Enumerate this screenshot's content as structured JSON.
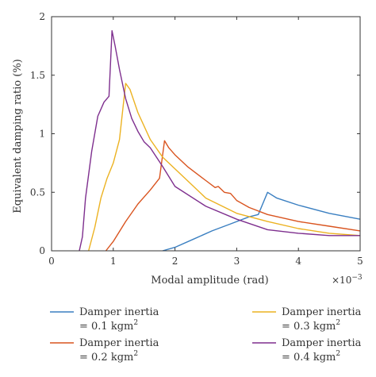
{
  "chart_data": {
    "type": "line",
    "title": "",
    "xlabel": "Modal amplitude (rad)",
    "x_multiplier": "×10",
    "x_multiplier_exponent": "−3",
    "ylabel": "Equivalent damping ratio (%)",
    "xlim": [
      0,
      5
    ],
    "ylim": [
      0,
      2
    ],
    "xticks": [
      0,
      1,
      2,
      3,
      4,
      5
    ],
    "yticks": [
      0,
      0.5,
      1,
      1.5,
      2
    ],
    "xtick_labels": [
      "0",
      "1",
      "2",
      "3",
      "4",
      "5"
    ],
    "ytick_labels": [
      "0",
      "0.5",
      "1",
      "1.5",
      "2"
    ],
    "grid": false,
    "legend_position": "bottom",
    "series": [
      {
        "name_line1": "Damper inertia",
        "name_line2_prefix": "= 0.1 kgm",
        "name_superscript": "2",
        "color": "#3a7fc1",
        "x": [
          1.8,
          2.0,
          2.3,
          2.6,
          2.9,
          3.2,
          3.35,
          3.5,
          3.65,
          4.0,
          4.5,
          5.0
        ],
        "y": [
          0.0,
          0.03,
          0.1,
          0.17,
          0.23,
          0.29,
          0.31,
          0.5,
          0.45,
          0.39,
          0.32,
          0.27
        ]
      },
      {
        "name_line1": "Damper inertia",
        "name_line2_prefix": "= 0.2 kgm",
        "name_superscript": "2",
        "color": "#d9541f",
        "x": [
          0.88,
          1.0,
          1.2,
          1.4,
          1.6,
          1.75,
          1.83,
          1.9,
          2.0,
          2.2,
          2.5,
          2.65,
          2.7,
          2.8,
          2.9,
          3.0,
          3.2,
          3.5,
          4.0,
          4.5,
          5.0
        ],
        "y": [
          0.0,
          0.08,
          0.25,
          0.4,
          0.52,
          0.62,
          0.94,
          0.88,
          0.82,
          0.72,
          0.6,
          0.54,
          0.55,
          0.5,
          0.49,
          0.43,
          0.37,
          0.31,
          0.25,
          0.21,
          0.17
        ]
      },
      {
        "name_line1": "Damper inertia",
        "name_line2_prefix": "= 0.3 kgm",
        "name_superscript": "2",
        "color": "#ecb221",
        "x": [
          0.6,
          0.7,
          0.8,
          0.9,
          1.0,
          1.1,
          1.2,
          1.27,
          1.4,
          1.6,
          1.8,
          2.0,
          2.2,
          2.5,
          3.0,
          3.5,
          4.0,
          4.5,
          5.0
        ],
        "y": [
          0.0,
          0.2,
          0.45,
          0.62,
          0.75,
          0.95,
          1.43,
          1.38,
          1.18,
          0.95,
          0.8,
          0.7,
          0.6,
          0.45,
          0.32,
          0.25,
          0.19,
          0.15,
          0.13
        ]
      },
      {
        "name_line1": "Damper inertia",
        "name_line2_prefix": "= 0.4 kgm",
        "name_superscript": "2",
        "color": "#7e2f8e",
        "x": [
          0.45,
          0.5,
          0.55,
          0.65,
          0.75,
          0.85,
          0.93,
          0.98,
          1.03,
          1.1,
          1.2,
          1.3,
          1.4,
          1.5,
          1.6,
          1.8,
          2.0,
          2.5,
          3.0,
          3.5,
          4.0,
          4.5,
          5.0
        ],
        "y": [
          0.0,
          0.12,
          0.45,
          0.85,
          1.15,
          1.27,
          1.32,
          1.88,
          1.75,
          1.55,
          1.3,
          1.13,
          1.02,
          0.93,
          0.88,
          0.72,
          0.55,
          0.38,
          0.27,
          0.18,
          0.15,
          0.13,
          0.13
        ]
      }
    ]
  }
}
